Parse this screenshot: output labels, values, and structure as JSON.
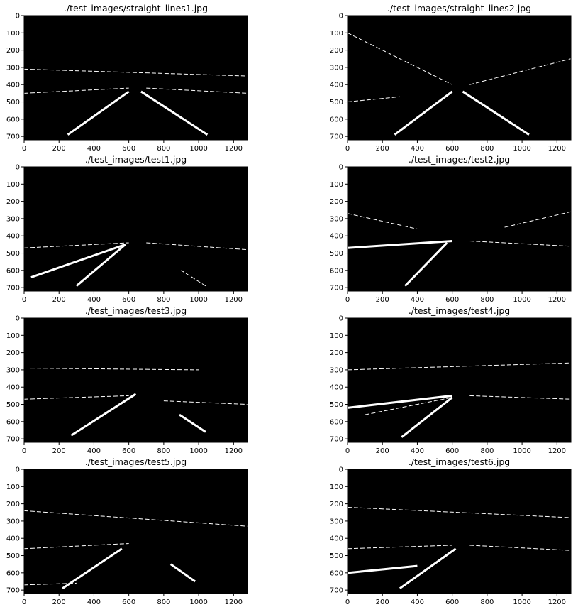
{
  "figure": {
    "background": "#ffffff",
    "image_background": "#000000",
    "edge_color": "#ffffff",
    "grid": "2x4"
  },
  "chart_data": [
    {
      "type": "image",
      "title": "./test_images/straight_lines1.jpg",
      "xlim": [
        0,
        1280
      ],
      "ylim": [
        720,
        0
      ],
      "xticks": [
        0,
        200,
        400,
        600,
        800,
        1000,
        1200
      ],
      "yticks": [
        0,
        100,
        200,
        300,
        400,
        500,
        600,
        700
      ],
      "edge_segments": [
        [
          [
            250,
            690
          ],
          [
            600,
            440
          ]
        ],
        [
          [
            670,
            440
          ],
          [
            1050,
            690
          ]
        ],
        [
          [
            0,
            450
          ],
          [
            600,
            420
          ]
        ],
        [
          [
            700,
            420
          ],
          [
            1280,
            450
          ]
        ],
        [
          [
            0,
            310
          ],
          [
            1280,
            350
          ]
        ]
      ]
    },
    {
      "type": "image",
      "title": "./test_images/straight_lines2.jpg",
      "xlim": [
        0,
        1280
      ],
      "ylim": [
        720,
        0
      ],
      "xticks": [
        0,
        200,
        400,
        600,
        800,
        1000,
        1200
      ],
      "yticks": [
        0,
        100,
        200,
        300,
        400,
        500,
        600,
        700
      ],
      "edge_segments": [
        [
          [
            270,
            690
          ],
          [
            600,
            440
          ]
        ],
        [
          [
            660,
            440
          ],
          [
            1040,
            690
          ]
        ],
        [
          [
            0,
            500
          ],
          [
            300,
            470
          ]
        ],
        [
          [
            0,
            100
          ],
          [
            600,
            400
          ]
        ],
        [
          [
            700,
            400
          ],
          [
            1280,
            250
          ]
        ]
      ]
    },
    {
      "type": "image",
      "title": "./test_images/test1.jpg",
      "xlim": [
        0,
        1280
      ],
      "ylim": [
        720,
        0
      ],
      "xticks": [
        0,
        200,
        400,
        600,
        800,
        1000,
        1200
      ],
      "yticks": [
        0,
        100,
        200,
        300,
        400,
        500,
        600,
        700
      ],
      "edge_segments": [
        [
          [
            300,
            690
          ],
          [
            580,
            450
          ]
        ],
        [
          [
            40,
            640
          ],
          [
            580,
            450
          ]
        ],
        [
          [
            0,
            470
          ],
          [
            600,
            440
          ]
        ],
        [
          [
            700,
            440
          ],
          [
            1280,
            480
          ]
        ],
        [
          [
            1040,
            690
          ],
          [
            900,
            600
          ]
        ]
      ]
    },
    {
      "type": "image",
      "title": "./test_images/test2.jpg",
      "xlim": [
        0,
        1280
      ],
      "ylim": [
        720,
        0
      ],
      "xticks": [
        0,
        200,
        400,
        600,
        800,
        1000,
        1200
      ],
      "yticks": [
        0,
        100,
        200,
        300,
        400,
        500,
        600,
        700
      ],
      "edge_segments": [
        [
          [
            330,
            690
          ],
          [
            570,
            440
          ]
        ],
        [
          [
            0,
            470
          ],
          [
            600,
            430
          ]
        ],
        [
          [
            700,
            430
          ],
          [
            1280,
            460
          ]
        ],
        [
          [
            0,
            270
          ],
          [
            400,
            360
          ]
        ],
        [
          [
            900,
            350
          ],
          [
            1280,
            260
          ]
        ]
      ]
    },
    {
      "type": "image",
      "title": "./test_images/test3.jpg",
      "xlim": [
        0,
        1280
      ],
      "ylim": [
        720,
        0
      ],
      "xticks": [
        0,
        200,
        400,
        600,
        800,
        1000,
        1200
      ],
      "yticks": [
        0,
        100,
        200,
        300,
        400,
        500,
        600,
        700
      ],
      "edge_segments": [
        [
          [
            270,
            680
          ],
          [
            640,
            440
          ]
        ],
        [
          [
            890,
            560
          ],
          [
            1040,
            660
          ]
        ],
        [
          [
            0,
            470
          ],
          [
            600,
            450
          ]
        ],
        [
          [
            0,
            290
          ],
          [
            1000,
            300
          ]
        ],
        [
          [
            800,
            480
          ],
          [
            1280,
            500
          ]
        ]
      ]
    },
    {
      "type": "image",
      "title": "./test_images/test4.jpg",
      "xlim": [
        0,
        1280
      ],
      "ylim": [
        720,
        0
      ],
      "xticks": [
        0,
        200,
        400,
        600,
        800,
        1000,
        1200
      ],
      "yticks": [
        0,
        100,
        200,
        300,
        400,
        500,
        600,
        700
      ],
      "edge_segments": [
        [
          [
            310,
            690
          ],
          [
            600,
            460
          ]
        ],
        [
          [
            0,
            520
          ],
          [
            600,
            450
          ]
        ],
        [
          [
            100,
            560
          ],
          [
            600,
            460
          ]
        ],
        [
          [
            700,
            450
          ],
          [
            1280,
            470
          ]
        ],
        [
          [
            0,
            300
          ],
          [
            1280,
            260
          ]
        ]
      ]
    },
    {
      "type": "image",
      "title": "./test_images/test5.jpg",
      "xlim": [
        0,
        1280
      ],
      "ylim": [
        720,
        0
      ],
      "xticks": [
        0,
        200,
        400,
        600,
        800,
        1000,
        1200
      ],
      "yticks": [
        0,
        100,
        200,
        300,
        400,
        500,
        600,
        700
      ],
      "edge_segments": [
        [
          [
            220,
            690
          ],
          [
            560,
            460
          ]
        ],
        [
          [
            840,
            550
          ],
          [
            980,
            650
          ]
        ],
        [
          [
            0,
            670
          ],
          [
            300,
            660
          ]
        ],
        [
          [
            0,
            460
          ],
          [
            600,
            430
          ]
        ],
        [
          [
            0,
            240
          ],
          [
            1280,
            330
          ]
        ]
      ]
    },
    {
      "type": "image",
      "title": "./test_images/test6.jpg",
      "xlim": [
        0,
        1280
      ],
      "ylim": [
        720,
        0
      ],
      "xticks": [
        0,
        200,
        400,
        600,
        800,
        1000,
        1200
      ],
      "yticks": [
        0,
        100,
        200,
        300,
        400,
        500,
        600,
        700
      ],
      "edge_segments": [
        [
          [
            300,
            690
          ],
          [
            620,
            460
          ]
        ],
        [
          [
            0,
            600
          ],
          [
            400,
            560
          ]
        ],
        [
          [
            0,
            460
          ],
          [
            600,
            440
          ]
        ],
        [
          [
            700,
            440
          ],
          [
            1280,
            470
          ]
        ],
        [
          [
            0,
            220
          ],
          [
            1280,
            280
          ]
        ]
      ]
    }
  ]
}
